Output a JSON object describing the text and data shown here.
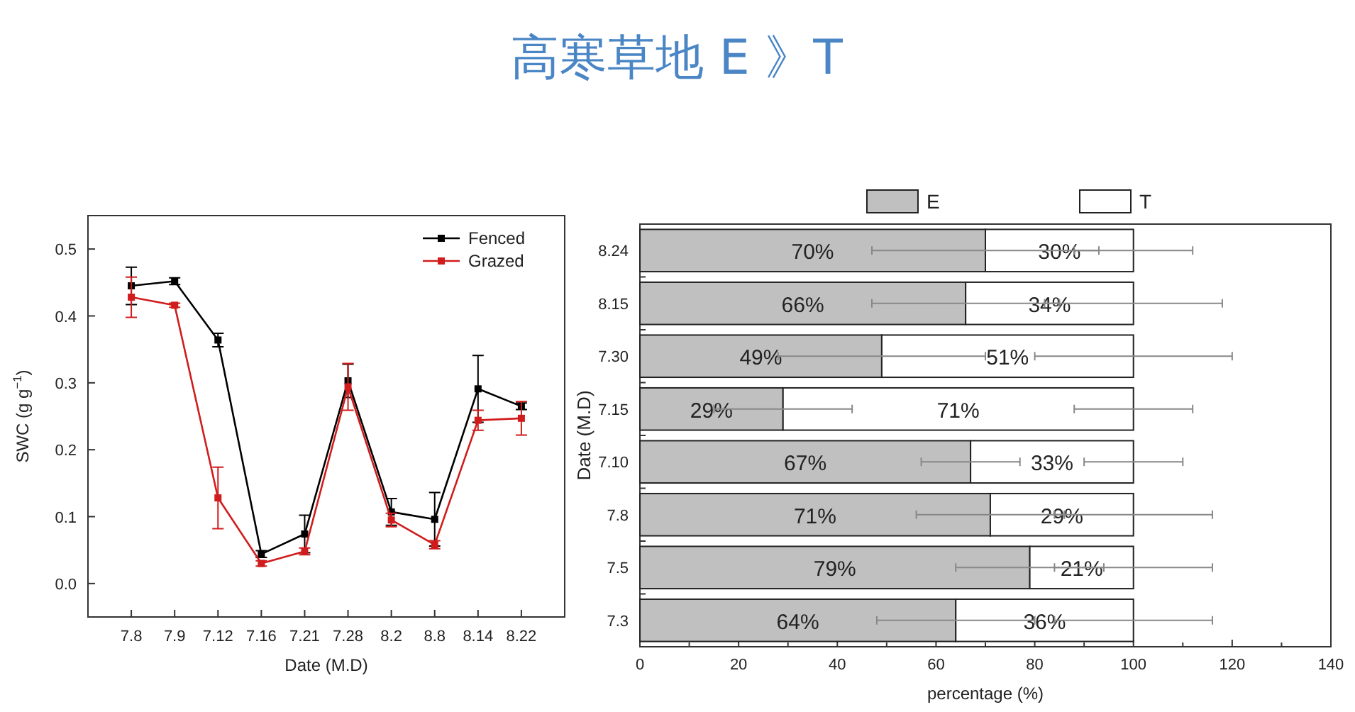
{
  "chart_data": [
    {
      "type": "other",
      "title": "高寒草地 E 》T"
    },
    {
      "type": "line",
      "xlabel": "Date (M.D)",
      "ylabel": "SWC (g g$^{−1}$)",
      "categories": [
        "7.8",
        "7.9",
        "7.12",
        "7.16",
        "7.21",
        "7.28",
        "8.2",
        "8.8",
        "8.14",
        "8.22"
      ],
      "ylim": [
        -0.05,
        0.55
      ],
      "yticks": [
        {
          "value": 0,
          "label": "0.0"
        },
        0.1,
        0.2,
        0.3,
        0.4,
        0.5
      ],
      "legend": "top right",
      "marker": "square",
      "line_style": "solid",
      "grid": false,
      "series": [
        {
          "name": "Fenced",
          "color": "#000000",
          "values": [
            0.445,
            0.452,
            0.364,
            0.044,
            0.074,
            0.303,
            0.107,
            0.096,
            0.291,
            0.265
          ],
          "errors": [
            0.028,
            0.005,
            0.01,
            0.005,
            0.028,
            0.025,
            0.02,
            0.04,
            0.05,
            0.005
          ]
        },
        {
          "name": "Grazed",
          "color": "#d01c1c",
          "values": [
            0.428,
            0.416,
            0.128,
            0.03,
            0.048,
            0.294,
            0.095,
            0.058,
            0.244,
            0.247
          ],
          "errors": [
            0.03,
            0.003,
            0.046,
            0.004,
            0.005,
            0.035,
            0.01,
            0.006,
            0.015,
            0.025
          ]
        }
      ]
    },
    {
      "type": "bar",
      "orientation": "horizontal",
      "stacked": true,
      "xlabel": "percentage (%)",
      "ylabel": "Date (M.D)",
      "categories": [
        "8.24",
        "8.15",
        "7.30",
        "7.15",
        "7.10",
        "7.8",
        "7.5",
        "7.3"
      ],
      "xlim": [
        0,
        140
      ],
      "xticks": [
        0,
        20,
        40,
        60,
        80,
        100,
        120,
        140
      ],
      "legend": "top",
      "grid": false,
      "series": [
        {
          "name": "E",
          "color": "#c0c0c0",
          "values": [
            70,
            66,
            49,
            29,
            67,
            71,
            79,
            64
          ],
          "value_labels": [
            "70%",
            "66%",
            "49%",
            "29%",
            "67%",
            "71%",
            "79%",
            "64%"
          ],
          "errors": [
            23,
            19,
            21,
            14,
            10,
            15,
            15,
            16
          ]
        },
        {
          "name": "T",
          "color": "#ffffff",
          "values": [
            30,
            34,
            51,
            71,
            33,
            29,
            21,
            36
          ],
          "value_labels": [
            "30%",
            "34%",
            "51%",
            "71%",
            "33%",
            "29%",
            "21%",
            "36%"
          ],
          "errors": [
            12,
            18,
            20,
            12,
            10,
            16,
            16,
            16
          ]
        }
      ]
    }
  ]
}
